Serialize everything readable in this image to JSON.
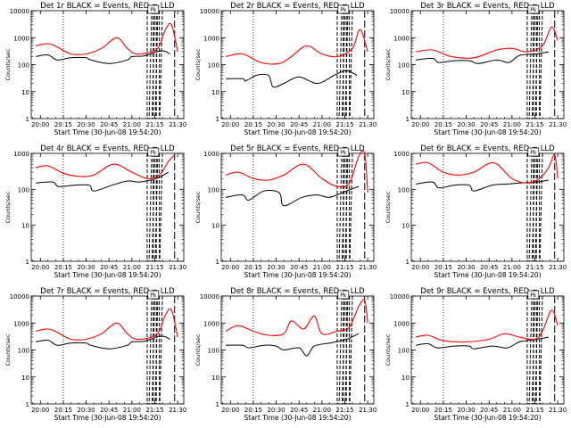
{
  "figure": {
    "xlabel": "Start Time (30-Jun-08 19:54:20)",
    "ylabel": "Counts/sec",
    "x_tick_labels": [
      "20:00",
      "20:15",
      "20:30",
      "20:45",
      "21:00",
      "21:15",
      "21:30"
    ],
    "y_tick_labels": [
      "1",
      "10",
      "100",
      "1000",
      "10000"
    ],
    "legend_box_text": "Pk"
  },
  "colors": {
    "events": "#000000",
    "lld": "#ff0000",
    "background": "#ffffff"
  },
  "chart_data": [
    {
      "type": "line",
      "title": "Det 1r BLACK = Events, RED = LLD",
      "x_tick_labels": [
        "20:00",
        "20:15",
        "20:30",
        "20:45",
        "21:00",
        "21:15",
        "21:30"
      ],
      "ylim": [
        1,
        10000
      ],
      "yscale": "log",
      "series": [
        {
          "name": "Events",
          "points": [
            [
              "19:57",
              200
            ],
            [
              "20:05",
              230
            ],
            [
              "20:11",
              150
            ],
            [
              "20:20",
              180
            ],
            [
              "20:30",
              180
            ],
            [
              "20:33",
              150
            ],
            [
              "20:45",
              110
            ],
            [
              "20:57",
              150
            ],
            [
              "21:00",
              200
            ],
            [
              "21:08",
              210
            ],
            [
              "21:16",
              300
            ],
            [
              "21:21",
              320
            ],
            [
              "21:25",
              250
            ]
          ]
        },
        {
          "name": "LLD",
          "points": [
            [
              "19:57",
              500
            ],
            [
              "20:05",
              600
            ],
            [
              "20:11",
              450
            ],
            [
              "20:20",
              250
            ],
            [
              "20:30",
              250
            ],
            [
              "20:40",
              400
            ],
            [
              "20:50",
              1000
            ],
            [
              "20:57",
              400
            ],
            [
              "21:03",
              250
            ],
            [
              "21:13",
              300
            ],
            [
              "21:18",
              500
            ],
            [
              "21:22",
              2000
            ],
            [
              "21:26",
              3000
            ],
            [
              "21:30",
              300
            ]
          ]
        }
      ]
    },
    {
      "type": "line",
      "title": "Det 2r BLACK = Events, RED = LLD",
      "x_tick_labels": [
        "20:00",
        "20:15",
        "20:30",
        "20:45",
        "21:00",
        "21:15",
        "21:30"
      ],
      "ylim": [
        1,
        10000
      ],
      "yscale": "log",
      "series": [
        {
          "name": "Events",
          "points": [
            [
              "19:57",
              30
            ],
            [
              "20:08",
              30
            ],
            [
              "20:10",
              25
            ],
            [
              "20:17",
              40
            ],
            [
              "20:25",
              40
            ],
            [
              "20:28",
              15
            ],
            [
              "20:35",
              20
            ],
            [
              "20:45",
              35
            ],
            [
              "20:57",
              20
            ],
            [
              "21:08",
              40
            ],
            [
              "21:16",
              60
            ],
            [
              "21:23",
              40
            ]
          ]
        },
        {
          "name": "LLD",
          "points": [
            [
              "19:57",
              200
            ],
            [
              "20:08",
              250
            ],
            [
              "20:20",
              120
            ],
            [
              "20:32",
              110
            ],
            [
              "20:40",
              200
            ],
            [
              "20:50",
              500
            ],
            [
              "21:00",
              250
            ],
            [
              "21:10",
              200
            ],
            [
              "21:20",
              400
            ],
            [
              "21:25",
              2000
            ],
            [
              "21:30",
              300
            ]
          ]
        }
      ]
    },
    {
      "type": "line",
      "title": "Det 3r BLACK = Events, RED = LLD",
      "x_tick_labels": [
        "20:00",
        "20:15",
        "20:30",
        "20:45",
        "21:00",
        "21:15",
        "21:30"
      ],
      "ylim": [
        1,
        10000
      ],
      "yscale": "log",
      "series": [
        {
          "name": "Events",
          "points": [
            [
              "19:57",
              150
            ],
            [
              "20:08",
              170
            ],
            [
              "20:12",
              120
            ],
            [
              "20:22",
              140
            ],
            [
              "20:32",
              140
            ],
            [
              "20:38",
              110
            ],
            [
              "20:50",
              150
            ],
            [
              "20:58",
              120
            ],
            [
              "21:05",
              220
            ],
            [
              "21:16",
              250
            ],
            [
              "21:24",
              300
            ]
          ]
        },
        {
          "name": "LLD",
          "points": [
            [
              "19:57",
              300
            ],
            [
              "20:08",
              350
            ],
            [
              "20:20",
              200
            ],
            [
              "20:35",
              180
            ],
            [
              "20:50",
              350
            ],
            [
              "21:00",
              400
            ],
            [
              "21:10",
              300
            ],
            [
              "21:20",
              500
            ],
            [
              "21:26",
              2500
            ],
            [
              "21:30",
              800
            ]
          ]
        }
      ]
    },
    {
      "type": "line",
      "title": "Det 4r BLACK = Events, RED = LLD",
      "x_tick_labels": [
        "20:00",
        "20:15",
        "20:30",
        "20:45",
        "21:00",
        "21:15",
        "21:30"
      ],
      "ylim": [
        1,
        1000
      ],
      "yscale": "log",
      "series": [
        {
          "name": "Events",
          "points": [
            [
              "19:57",
              150
            ],
            [
              "20:08",
              160
            ],
            [
              "20:12",
              120
            ],
            [
              "20:22",
              130
            ],
            [
              "20:32",
              130
            ],
            [
              "20:35",
              90
            ],
            [
              "20:47",
              130
            ],
            [
              "20:57",
              170
            ],
            [
              "21:05",
              160
            ],
            [
              "21:16",
              200
            ],
            [
              "21:24",
              300
            ]
          ]
        },
        {
          "name": "LLD",
          "points": [
            [
              "19:57",
              400
            ],
            [
              "20:05",
              450
            ],
            [
              "20:15",
              280
            ],
            [
              "20:25",
              230
            ],
            [
              "20:35",
              250
            ],
            [
              "20:48",
              500
            ],
            [
              "21:00",
              300
            ],
            [
              "21:10",
              200
            ],
            [
              "21:18",
              250
            ],
            [
              "21:24",
              600
            ],
            [
              "21:28",
              900
            ]
          ]
        }
      ]
    },
    {
      "type": "line",
      "title": "Det 5r BLACK = Events, RED = LLD",
      "x_tick_labels": [
        "20:00",
        "20:15",
        "20:30",
        "20:45",
        "21:00",
        "21:15",
        "21:30"
      ],
      "ylim": [
        1,
        1000
      ],
      "yscale": "log",
      "series": [
        {
          "name": "Events",
          "points": [
            [
              "19:57",
              60
            ],
            [
              "20:08",
              70
            ],
            [
              "20:12",
              50
            ],
            [
              "20:22",
              90
            ],
            [
              "20:32",
              80
            ],
            [
              "20:35",
              35
            ],
            [
              "20:47",
              60
            ],
            [
              "20:57",
              70
            ],
            [
              "21:05",
              60
            ],
            [
              "21:16",
              90
            ],
            [
              "21:24",
              120
            ]
          ]
        },
        {
          "name": "LLD",
          "points": [
            [
              "19:57",
              250
            ],
            [
              "20:05",
              300
            ],
            [
              "20:15",
              200
            ],
            [
              "20:25",
              180
            ],
            [
              "20:35",
              250
            ],
            [
              "20:48",
              500
            ],
            [
              "21:00",
              200
            ],
            [
              "21:10",
              120
            ],
            [
              "21:18",
              150
            ],
            [
              "21:24",
              800
            ],
            [
              "21:28",
              1000
            ],
            [
              "21:30",
              80
            ]
          ]
        }
      ]
    },
    {
      "type": "line",
      "title": "Det 6r BLACK = Events, RED = LLD",
      "x_tick_labels": [
        "20:00",
        "20:15",
        "20:30",
        "20:45",
        "21:00",
        "21:15",
        "21:30"
      ],
      "ylim": [
        1,
        1000
      ],
      "yscale": "log",
      "series": [
        {
          "name": "Events",
          "points": [
            [
              "19:57",
              140
            ],
            [
              "20:08",
              160
            ],
            [
              "20:12",
              110
            ],
            [
              "20:22",
              130
            ],
            [
              "20:32",
              130
            ],
            [
              "20:35",
              90
            ],
            [
              "20:47",
              130
            ],
            [
              "20:57",
              140
            ],
            [
              "21:05",
              150
            ],
            [
              "21:16",
              160
            ],
            [
              "21:24",
              180
            ]
          ]
        },
        {
          "name": "LLD",
          "points": [
            [
              "19:57",
              500
            ],
            [
              "20:05",
              550
            ],
            [
              "20:15",
              300
            ],
            [
              "20:25",
              250
            ],
            [
              "20:35",
              300
            ],
            [
              "20:48",
              550
            ],
            [
              "21:00",
              200
            ],
            [
              "21:10",
              150
            ],
            [
              "21:18",
              200
            ],
            [
              "21:24",
              400
            ],
            [
              "21:28",
              900
            ],
            [
              "21:30",
              200
            ]
          ]
        }
      ]
    },
    {
      "type": "line",
      "title": "Det 7r BLACK = Events, RED = LLD",
      "x_tick_labels": [
        "20:00",
        "20:15",
        "20:30",
        "20:45",
        "21:00",
        "21:15",
        "21:30"
      ],
      "ylim": [
        1,
        10000
      ],
      "yscale": "log",
      "series": [
        {
          "name": "Events",
          "points": [
            [
              "19:57",
              200
            ],
            [
              "20:05",
              230
            ],
            [
              "20:11",
              150
            ],
            [
              "20:20",
              180
            ],
            [
              "20:30",
              180
            ],
            [
              "20:33",
              150
            ],
            [
              "20:45",
              110
            ],
            [
              "20:57",
              150
            ],
            [
              "21:00",
              200
            ],
            [
              "21:08",
              210
            ],
            [
              "21:16",
              300
            ],
            [
              "21:21",
              320
            ],
            [
              "21:25",
              250
            ]
          ]
        },
        {
          "name": "LLD",
          "points": [
            [
              "19:57",
              500
            ],
            [
              "20:05",
              600
            ],
            [
              "20:11",
              450
            ],
            [
              "20:20",
              250
            ],
            [
              "20:30",
              250
            ],
            [
              "20:40",
              400
            ],
            [
              "20:50",
              1000
            ],
            [
              "20:57",
              400
            ],
            [
              "21:03",
              250
            ],
            [
              "21:13",
              300
            ],
            [
              "21:18",
              500
            ],
            [
              "21:22",
              2000
            ],
            [
              "21:26",
              3000
            ],
            [
              "21:30",
              300
            ]
          ]
        }
      ]
    },
    {
      "type": "line",
      "title": "Det 8r BLACK = Events, RED = LLD",
      "x_tick_labels": [
        "20:00",
        "20:15",
        "20:30",
        "20:45",
        "21:00",
        "21:15",
        "21:30"
      ],
      "ylim": [
        1,
        10000
      ],
      "yscale": "log",
      "series": [
        {
          "name": "Events",
          "points": [
            [
              "19:57",
              150
            ],
            [
              "20:08",
              150
            ],
            [
              "20:12",
              120
            ],
            [
              "20:22",
              150
            ],
            [
              "20:30",
              140
            ],
            [
              "20:35",
              100
            ],
            [
              "20:45",
              120
            ],
            [
              "20:50",
              60
            ],
            [
              "20:55",
              140
            ],
            [
              "21:05",
              180
            ],
            [
              "21:16",
              250
            ],
            [
              "21:24",
              400
            ]
          ]
        },
        {
          "name": "LLD",
          "points": [
            [
              "19:57",
              500
            ],
            [
              "20:05",
              800
            ],
            [
              "20:15",
              500
            ],
            [
              "20:25",
              350
            ],
            [
              "20:35",
              400
            ],
            [
              "20:40",
              1200
            ],
            [
              "20:48",
              600
            ],
            [
              "20:55",
              1800
            ],
            [
              "21:00",
              400
            ],
            [
              "21:10",
              500
            ],
            [
              "21:18",
              700
            ],
            [
              "21:24",
              4000
            ],
            [
              "21:28",
              7000
            ],
            [
              "21:30",
              1000
            ]
          ]
        }
      ]
    },
    {
      "type": "line",
      "title": "Det 9r BLACK = Events, RED = LLD",
      "x_tick_labels": [
        "20:00",
        "20:15",
        "20:30",
        "20:45",
        "21:00",
        "21:15",
        "21:30"
      ],
      "ylim": [
        1,
        10000
      ],
      "yscale": "log",
      "series": [
        {
          "name": "Events",
          "points": [
            [
              "19:57",
              150
            ],
            [
              "20:05",
              170
            ],
            [
              "20:11",
              120
            ],
            [
              "20:22",
              140
            ],
            [
              "20:32",
              140
            ],
            [
              "20:35",
              110
            ],
            [
              "20:47",
              140
            ],
            [
              "20:57",
              120
            ],
            [
              "21:05",
              200
            ],
            [
              "21:16",
              250
            ],
            [
              "21:24",
              300
            ]
          ]
        },
        {
          "name": "LLD",
          "points": [
            [
              "19:57",
              300
            ],
            [
              "20:05",
              350
            ],
            [
              "20:15",
              220
            ],
            [
              "20:30",
              200
            ],
            [
              "20:45",
              250
            ],
            [
              "20:55",
              400
            ],
            [
              "21:05",
              300
            ],
            [
              "21:15",
              250
            ],
            [
              "21:20",
              500
            ],
            [
              "21:26",
              3000
            ],
            [
              "21:30",
              800
            ]
          ]
        }
      ]
    }
  ]
}
